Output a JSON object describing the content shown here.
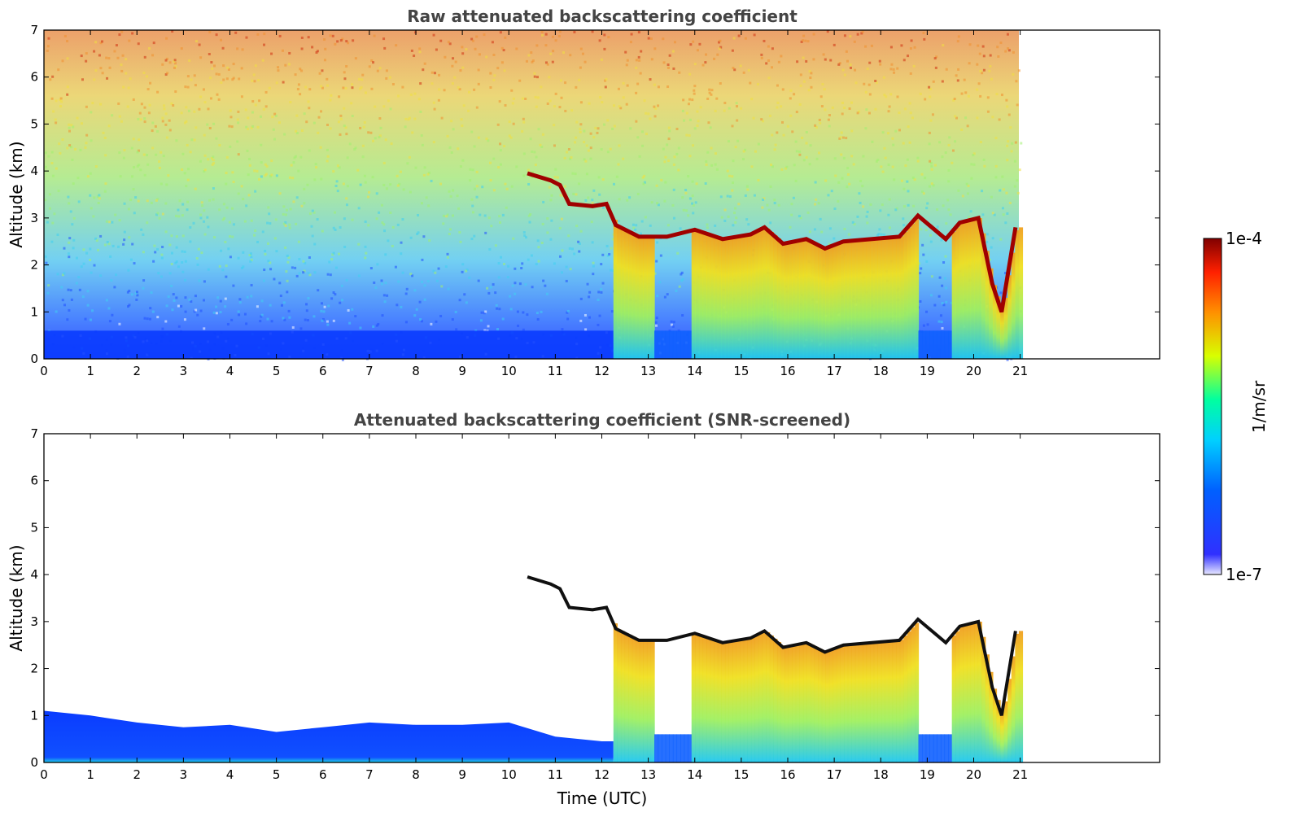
{
  "chart_data": [
    {
      "type": "heatmap",
      "title": "Raw attenuated backscattering coefficient",
      "xlabel": "",
      "ylabel": "Altitude (km)",
      "xlim": [
        0,
        24
      ],
      "ylim": [
        0,
        7
      ],
      "xticks": [
        "0",
        "1",
        "2",
        "3",
        "4",
        "5",
        "6",
        "7",
        "8",
        "9",
        "10",
        "11",
        "12",
        "13",
        "14",
        "15",
        "16",
        "17",
        "18",
        "19",
        "20",
        "21"
      ],
      "yticks": [
        "0",
        "1",
        "2",
        "3",
        "4",
        "5",
        "6",
        "7"
      ],
      "data_end_time": 21,
      "cloud_base_km": [
        {
          "t": 10.4,
          "z": 3.95
        },
        {
          "t": 10.9,
          "z": 3.8
        },
        {
          "t": 11.1,
          "z": 3.7
        },
        {
          "t": 11.3,
          "z": 3.3
        },
        {
          "t": 11.8,
          "z": 3.25
        },
        {
          "t": 12.1,
          "z": 3.3
        },
        {
          "t": 12.3,
          "z": 2.85
        },
        {
          "t": 12.8,
          "z": 2.6
        },
        {
          "t": 13.4,
          "z": 2.6
        },
        {
          "t": 14.0,
          "z": 2.75
        },
        {
          "t": 14.6,
          "z": 2.55
        },
        {
          "t": 15.2,
          "z": 2.65
        },
        {
          "t": 15.5,
          "z": 2.8
        },
        {
          "t": 15.9,
          "z": 2.45
        },
        {
          "t": 16.4,
          "z": 2.55
        },
        {
          "t": 16.8,
          "z": 2.35
        },
        {
          "t": 17.2,
          "z": 2.5
        },
        {
          "t": 18.4,
          "z": 2.6
        },
        {
          "t": 18.8,
          "z": 3.05
        },
        {
          "t": 19.4,
          "z": 2.55
        },
        {
          "t": 19.7,
          "z": 2.9
        },
        {
          "t": 20.1,
          "z": 3.0
        },
        {
          "t": 20.4,
          "z": 1.6
        },
        {
          "t": 20.6,
          "z": 1.0
        },
        {
          "t": 20.9,
          "z": 2.8
        }
      ]
    },
    {
      "type": "heatmap",
      "title": "Attenuated backscattering coefficient (SNR-screened)",
      "xlabel": "Time (UTC)",
      "ylabel": "Altitude (km)",
      "xlim": [
        0,
        24
      ],
      "ylim": [
        0,
        7
      ],
      "xticks": [
        "0",
        "1",
        "2",
        "3",
        "4",
        "5",
        "6",
        "7",
        "8",
        "9",
        "10",
        "11",
        "12",
        "13",
        "14",
        "15",
        "16",
        "17",
        "18",
        "19",
        "20",
        "21"
      ],
      "yticks": [
        "0",
        "1",
        "2",
        "3",
        "4",
        "5",
        "6",
        "7"
      ],
      "data_end_time": 21,
      "boundary_layer_top_km": [
        {
          "t": 0,
          "z": 1.1
        },
        {
          "t": 1,
          "z": 1.0
        },
        {
          "t": 2,
          "z": 0.85
        },
        {
          "t": 3,
          "z": 0.75
        },
        {
          "t": 4,
          "z": 0.8
        },
        {
          "t": 5,
          "z": 0.65
        },
        {
          "t": 6,
          "z": 0.75
        },
        {
          "t": 7,
          "z": 0.85
        },
        {
          "t": 8,
          "z": 0.8
        },
        {
          "t": 9,
          "z": 0.8
        },
        {
          "t": 10,
          "z": 0.85
        },
        {
          "t": 11,
          "z": 0.55
        },
        {
          "t": 12,
          "z": 0.45
        }
      ]
    }
  ],
  "colorbar": {
    "label": "1/m/sr",
    "min_label": "1e-7",
    "max_label": "1e-4",
    "scale": "log",
    "colors": [
      "#e8e8ff",
      "#0000ff",
      "#00c8ff",
      "#00ffb0",
      "#e0ff00",
      "#ff9000",
      "#ff2000",
      "#800000"
    ]
  }
}
